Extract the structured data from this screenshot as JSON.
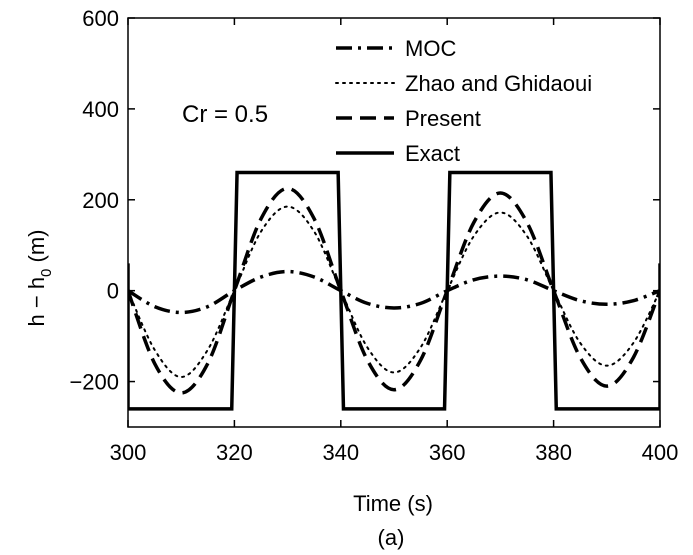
{
  "chart_data": {
    "type": "line",
    "xlabel": "Time (s)",
    "ylabel": "h − h",
    "ylabel_subscript": "0",
    "ylabel_unit": " (m)",
    "sublabel": "(a)",
    "xlim": [
      300,
      400
    ],
    "ylim": [
      -300,
      600
    ],
    "xticks": [
      300,
      320,
      340,
      360,
      380,
      400
    ],
    "yticks": [
      -200,
      0,
      200,
      400,
      600
    ],
    "ytick_labels": [
      "−200",
      "0",
      "200",
      "400",
      "600"
    ],
    "grid": false,
    "legend_position": "top-right",
    "annotation": "Cr = 0.5",
    "series": [
      {
        "name": "MOC",
        "style": "dashdot",
        "x": [
          300,
          305,
          310,
          315,
          320,
          325,
          330,
          335,
          340,
          345,
          350,
          355,
          360,
          365,
          370,
          375,
          380,
          385,
          390,
          395,
          400
        ],
        "y": [
          0,
          -35,
          -48,
          -35,
          0,
          30,
          42,
          30,
          0,
          -28,
          -38,
          -28,
          0,
          24,
          32,
          24,
          0,
          -22,
          -30,
          -22,
          0
        ]
      },
      {
        "name": "Zhao and Ghidaoui",
        "style": "dotted",
        "x": [
          300,
          305,
          310,
          315,
          320,
          325,
          330,
          335,
          340,
          345,
          350,
          355,
          360,
          365,
          370,
          375,
          380,
          385,
          390,
          395,
          400
        ],
        "y": [
          0,
          -130,
          -190,
          -130,
          0,
          130,
          185,
          130,
          0,
          -125,
          -180,
          -125,
          0,
          120,
          172,
          120,
          0,
          -115,
          -165,
          -115,
          0
        ]
      },
      {
        "name": "Present",
        "style": "dashed",
        "x": [
          300,
          305,
          310,
          315,
          320,
          325,
          330,
          335,
          340,
          345,
          350,
          355,
          360,
          365,
          370,
          375,
          380,
          385,
          390,
          395,
          400
        ],
        "y": [
          0,
          -160,
          -225,
          -160,
          0,
          158,
          225,
          158,
          0,
          -153,
          -218,
          -153,
          0,
          150,
          215,
          150,
          0,
          -147,
          -210,
          -147,
          0
        ]
      },
      {
        "name": "Exact",
        "style": "solid",
        "x": [
          300,
          300,
          319.5,
          320.5,
          339.5,
          340.5,
          359.5,
          360.5,
          379.5,
          380.5,
          399.5,
          400,
          400
        ],
        "y": [
          60,
          -260,
          -260,
          260,
          260,
          -260,
          -260,
          260,
          260,
          -260,
          -260,
          -260,
          60
        ]
      }
    ]
  }
}
